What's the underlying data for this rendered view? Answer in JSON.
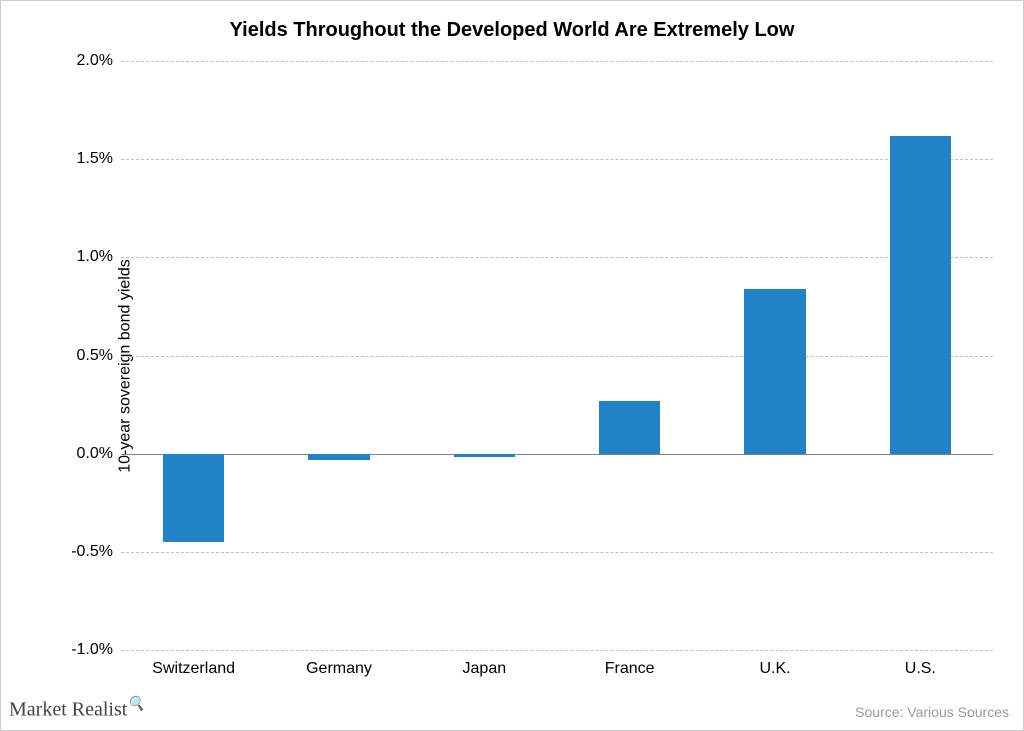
{
  "chart": {
    "type": "bar",
    "title": "Yields Throughout the Developed World Are Extremely Low",
    "title_fontsize": 20,
    "title_color": "#000000",
    "ylabel": "10-year sovereign bond yields",
    "ylabel_fontsize": 16,
    "ylabel_color": "#000000",
    "categories": [
      "Switzerland",
      "Germany",
      "Japan",
      "France",
      "U.K.",
      "U.S."
    ],
    "values": [
      -0.45,
      -0.03,
      -0.015,
      0.27,
      0.84,
      1.62
    ],
    "ylim": [
      -1.0,
      2.0
    ],
    "ytick_step": 0.5,
    "yticks": [
      -1.0,
      -0.5,
      0.0,
      0.5,
      1.0,
      1.5,
      2.0
    ],
    "ytick_labels": [
      "-1.0%",
      "-0.5%",
      "0.0%",
      "0.5%",
      "1.0%",
      "1.5%",
      "2.0%"
    ],
    "tick_fontsize": 16,
    "xtick_fontsize": 16,
    "bar_color": "#1f83c6",
    "bar_width": 0.42,
    "background_color": "#ffffff",
    "grid_color": "#bfbfbf",
    "axis_color": "#808080",
    "grid_dash": "6,6"
  },
  "footer": {
    "watermark": "Market Realist",
    "watermark_fontsize": 20,
    "source": "Source: Various Sources",
    "source_fontsize": 14,
    "source_color": "#9a9a9a"
  }
}
